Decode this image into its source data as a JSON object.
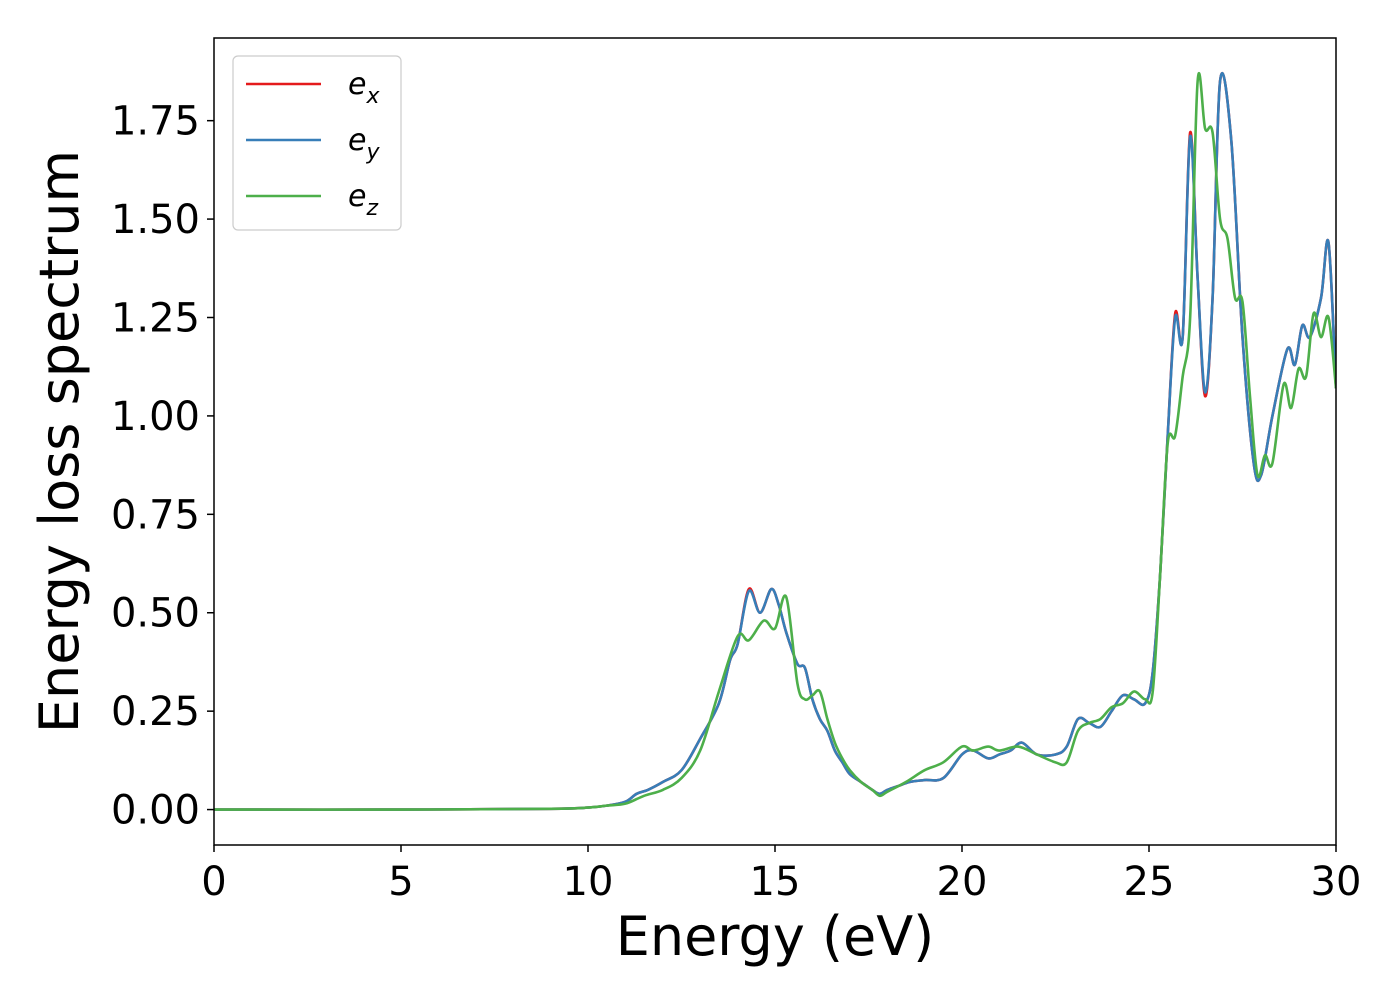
{
  "chart_data": {
    "type": "line",
    "xlabel": "Energy (eV)",
    "ylabel": "Energy loss spectrum",
    "xlim": [
      0,
      30
    ],
    "ylim": [
      -0.09,
      1.96
    ],
    "xticks": [
      0,
      5,
      10,
      15,
      20,
      25,
      30
    ],
    "xtick_labels": [
      "0",
      "5",
      "10",
      "15",
      "20",
      "25",
      "30"
    ],
    "yticks": [
      0.0,
      0.25,
      0.5,
      0.75,
      1.0,
      1.25,
      1.5,
      1.75
    ],
    "ytick_labels": [
      "0.00",
      "0.25",
      "0.50",
      "0.75",
      "1.00",
      "1.25",
      "1.50",
      "1.75"
    ],
    "grid": false,
    "legend_position": "top-left",
    "series": [
      {
        "name": "e_x",
        "label_base": "e",
        "label_sub": "x",
        "color": "#e41a1c",
        "x": [
          0,
          5,
          9,
          10,
          10.5,
          11,
          11.3,
          11.6,
          12,
          12.5,
          13,
          13.5,
          13.8,
          14.0,
          14.3,
          14.6,
          14.9,
          15.1,
          15.3,
          15.6,
          15.8,
          16.0,
          16.2,
          16.4,
          16.6,
          16.8,
          17.0,
          17.3,
          17.6,
          17.8,
          18.0,
          18.3,
          18.6,
          19.0,
          19.5,
          20.0,
          20.3,
          20.7,
          21.0,
          21.3,
          21.6,
          22.0,
          22.5,
          22.8,
          23.1,
          23.4,
          23.7,
          24.0,
          24.3,
          24.6,
          24.9,
          25.1,
          25.3,
          25.5,
          25.7,
          25.9,
          26.1,
          26.3,
          26.5,
          26.7,
          26.9,
          27.2,
          27.5,
          27.8,
          28.0,
          28.3,
          28.7,
          28.9,
          29.1,
          29.3,
          29.6,
          29.8,
          30.0
        ],
        "y": [
          0.0,
          0.0,
          0.002,
          0.005,
          0.01,
          0.02,
          0.04,
          0.05,
          0.07,
          0.1,
          0.18,
          0.27,
          0.38,
          0.42,
          0.56,
          0.5,
          0.56,
          0.52,
          0.45,
          0.37,
          0.36,
          0.28,
          0.23,
          0.2,
          0.15,
          0.12,
          0.09,
          0.07,
          0.05,
          0.04,
          0.05,
          0.06,
          0.07,
          0.075,
          0.08,
          0.14,
          0.15,
          0.13,
          0.14,
          0.15,
          0.17,
          0.14,
          0.14,
          0.16,
          0.23,
          0.22,
          0.21,
          0.25,
          0.29,
          0.28,
          0.27,
          0.35,
          0.6,
          0.95,
          1.26,
          1.2,
          1.72,
          1.35,
          1.05,
          1.3,
          1.85,
          1.7,
          1.2,
          0.88,
          0.85,
          1.0,
          1.17,
          1.13,
          1.23,
          1.2,
          1.3,
          1.44,
          1.07
        ]
      },
      {
        "name": "e_y",
        "label_base": "e",
        "label_sub": "y",
        "color": "#377eb8",
        "x": [
          0,
          5,
          9,
          10,
          10.5,
          11,
          11.3,
          11.6,
          12,
          12.5,
          13,
          13.5,
          13.8,
          14.0,
          14.3,
          14.6,
          14.9,
          15.1,
          15.3,
          15.6,
          15.8,
          16.0,
          16.2,
          16.4,
          16.6,
          16.8,
          17.0,
          17.3,
          17.6,
          17.8,
          18.0,
          18.3,
          18.6,
          19.0,
          19.5,
          20.0,
          20.3,
          20.7,
          21.0,
          21.3,
          21.6,
          22.0,
          22.5,
          22.8,
          23.1,
          23.4,
          23.7,
          24.0,
          24.3,
          24.6,
          24.9,
          25.1,
          25.3,
          25.5,
          25.7,
          25.9,
          26.1,
          26.3,
          26.5,
          26.7,
          26.9,
          27.2,
          27.5,
          27.8,
          28.0,
          28.3,
          28.7,
          28.9,
          29.1,
          29.3,
          29.6,
          29.8,
          30.0
        ],
        "y": [
          0.0,
          0.0,
          0.002,
          0.005,
          0.01,
          0.02,
          0.04,
          0.05,
          0.07,
          0.1,
          0.18,
          0.27,
          0.38,
          0.42,
          0.555,
          0.5,
          0.56,
          0.52,
          0.45,
          0.37,
          0.36,
          0.28,
          0.23,
          0.2,
          0.15,
          0.12,
          0.09,
          0.07,
          0.05,
          0.04,
          0.05,
          0.06,
          0.07,
          0.075,
          0.08,
          0.14,
          0.15,
          0.13,
          0.14,
          0.15,
          0.17,
          0.14,
          0.14,
          0.16,
          0.23,
          0.22,
          0.21,
          0.25,
          0.29,
          0.28,
          0.27,
          0.35,
          0.6,
          0.95,
          1.25,
          1.2,
          1.71,
          1.35,
          1.06,
          1.3,
          1.85,
          1.7,
          1.2,
          0.88,
          0.85,
          1.0,
          1.17,
          1.13,
          1.23,
          1.2,
          1.3,
          1.44,
          1.07
        ]
      },
      {
        "name": "e_z",
        "label_base": "e",
        "label_sub": "z",
        "color": "#4daf4a",
        "x": [
          0,
          5,
          9,
          10,
          10.5,
          11,
          11.5,
          12,
          12.5,
          13,
          13.5,
          14.0,
          14.3,
          14.7,
          15.0,
          15.3,
          15.6,
          15.8,
          16.0,
          16.2,
          16.4,
          16.6,
          16.8,
          17.0,
          17.3,
          17.6,
          17.8,
          18.0,
          18.5,
          19.0,
          19.5,
          20.0,
          20.3,
          20.7,
          21.0,
          21.5,
          22.0,
          22.5,
          22.8,
          23.1,
          23.4,
          23.7,
          24.0,
          24.3,
          24.6,
          24.9,
          25.1,
          25.3,
          25.5,
          25.7,
          25.9,
          26.1,
          26.3,
          26.5,
          26.7,
          26.9,
          27.1,
          27.3,
          27.5,
          27.7,
          27.9,
          28.1,
          28.3,
          28.6,
          28.8,
          29.0,
          29.2,
          29.4,
          29.6,
          29.8,
          30.0
        ],
        "y": [
          0.0,
          0.0,
          0.002,
          0.005,
          0.01,
          0.015,
          0.035,
          0.05,
          0.08,
          0.15,
          0.3,
          0.44,
          0.43,
          0.48,
          0.46,
          0.54,
          0.32,
          0.28,
          0.29,
          0.3,
          0.23,
          0.17,
          0.13,
          0.1,
          0.07,
          0.05,
          0.035,
          0.045,
          0.07,
          0.1,
          0.12,
          0.16,
          0.15,
          0.16,
          0.15,
          0.16,
          0.14,
          0.12,
          0.12,
          0.2,
          0.22,
          0.23,
          0.26,
          0.27,
          0.3,
          0.28,
          0.3,
          0.6,
          0.93,
          0.95,
          1.1,
          1.25,
          1.85,
          1.73,
          1.72,
          1.5,
          1.45,
          1.3,
          1.29,
          1.05,
          0.85,
          0.9,
          0.88,
          1.08,
          1.02,
          1.12,
          1.1,
          1.26,
          1.2,
          1.25,
          1.07
        ]
      }
    ]
  }
}
